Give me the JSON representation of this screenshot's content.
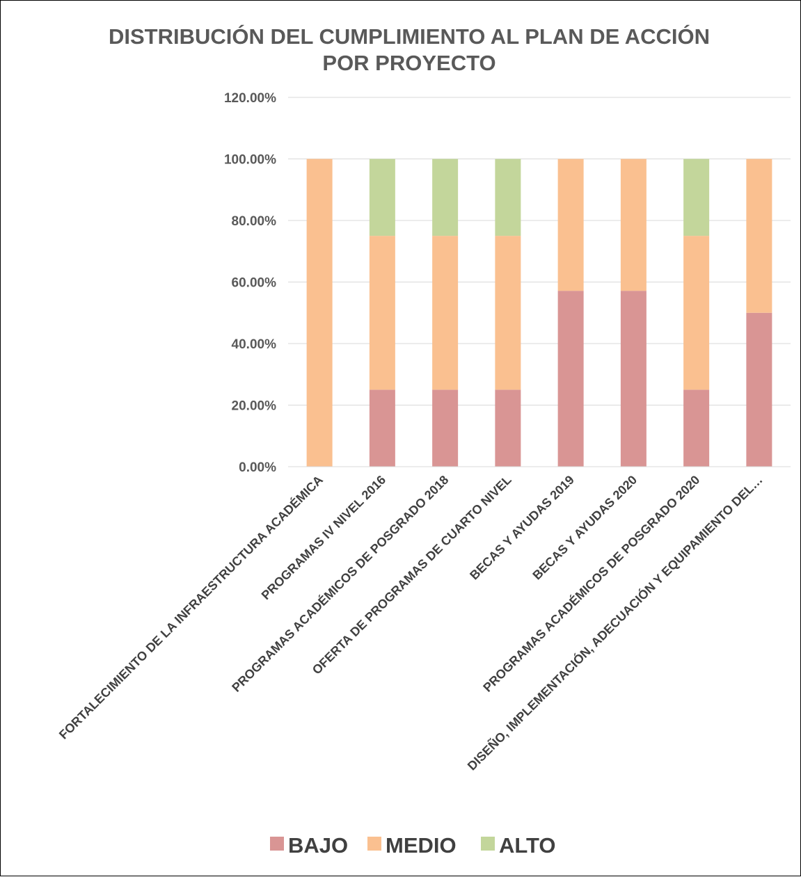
{
  "chart_data": {
    "type": "bar",
    "stacked": true,
    "title_lines": [
      "DISTRIBUCIÓN DEL CUMPLIMIENTO AL PLAN DE ACCIÓN",
      "POR PROYECTO"
    ],
    "categories": [
      "FORTALECIMIENTO DE LA INFRAESTRUCTURA ACADÉMICA",
      "PROGRAMAS IV NIVEL 2016",
      "PROGRAMAS ACADÉMICOS DE POSGRADO 2018",
      "OFERTA DE PROGRAMAS DE CUARTO NIVEL",
      "BECAS Y AYUDAS 2019",
      "BECAS Y AYUDAS 2020",
      "PROGRAMAS ACADÉMICOS DE POSGRADO 2020",
      "DISEÑO, IMPLEMENTACIÓN, ADECUACIÓN Y EQUIPAMIENTO DEL…"
    ],
    "series": [
      {
        "name": "BAJO",
        "color": "#d99594",
        "values": [
          0,
          25,
          25,
          25,
          57.14,
          57.14,
          25,
          50
        ]
      },
      {
        "name": "MEDIO",
        "color": "#fac090",
        "values": [
          100,
          50,
          50,
          50,
          42.86,
          42.86,
          50,
          50
        ]
      },
      {
        "name": "ALTO",
        "color": "#c3d69b",
        "values": [
          0,
          25,
          25,
          25,
          0,
          0,
          25,
          0
        ]
      }
    ],
    "y_ticks": [
      "0.00%",
      "20.00%",
      "40.00%",
      "60.00%",
      "80.00%",
      "100.00%",
      "120.00%"
    ],
    "ylim": [
      0,
      120
    ],
    "y_step": 20,
    "grid": true,
    "gridline_color": "#d9d9d9",
    "legend_position": "bottom"
  }
}
